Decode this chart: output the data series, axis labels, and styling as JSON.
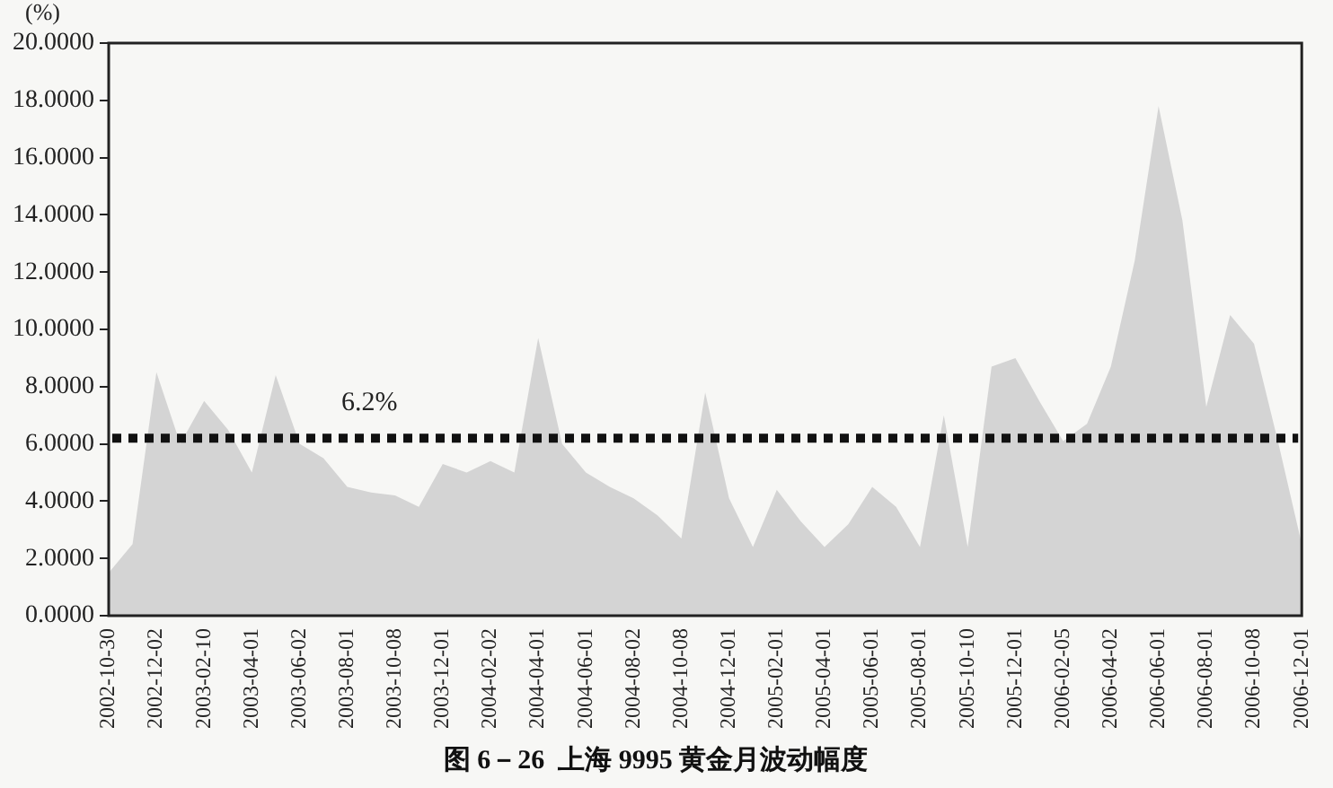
{
  "chart_data": {
    "type": "area",
    "title": "图 6－26  上海 9995 黄金月波动幅度",
    "ylabel": "(%)",
    "categories": [
      "2002-10-30",
      null,
      "2002-12-02",
      null,
      "2003-02-10",
      null,
      "2003-04-01",
      null,
      "2003-06-02",
      null,
      "2003-08-01",
      null,
      "2003-10-08",
      null,
      "2003-12-01",
      null,
      "2004-02-02",
      null,
      "2004-04-01",
      null,
      "2004-06-01",
      null,
      "2004-08-02",
      null,
      "2004-10-08",
      null,
      "2004-12-01",
      null,
      "2005-02-01",
      null,
      "2005-04-01",
      null,
      "2005-06-01",
      null,
      "2005-08-01",
      null,
      "2005-10-10",
      null,
      "2005-12-01",
      null,
      "2006-02-05",
      null,
      "2006-04-02",
      null,
      "2006-06-01",
      null,
      "2006-08-01",
      null,
      "2006-10-08",
      null,
      "2006-12-01"
    ],
    "series": [
      {
        "color": "#d4d4d4",
        "values": [
          1.5,
          2.5,
          8.5,
          6,
          7.5,
          6.5,
          5,
          8.4,
          6,
          5.5,
          4.5,
          4.3,
          4.2,
          3.8,
          5.3,
          5,
          5.4,
          5,
          9.7,
          6,
          5,
          4.5,
          4.1,
          3.5,
          2.7,
          7.8,
          4.1,
          2.4,
          4.4,
          3.3,
          2.4,
          3.2,
          4.5,
          3.8,
          2.4,
          7,
          2.4,
          8.7,
          9,
          7.5,
          6.1,
          6.7,
          8.7,
          12.4,
          17.8,
          13.8,
          7.3,
          10.5,
          9.5,
          6.1,
          2.5
        ]
      }
    ],
    "ylim": [
      0,
      20
    ],
    "yticks": [
      {
        "value": 0,
        "label": "0.0000"
      },
      {
        "value": 2,
        "label": "2.0000"
      },
      {
        "value": 4,
        "label": "4.0000"
      },
      {
        "value": 6,
        "label": "6.0000"
      },
      {
        "value": 8,
        "label": "8.0000"
      },
      {
        "value": 10,
        "label": "10.0000"
      },
      {
        "value": 12,
        "label": "12.0000"
      },
      {
        "value": 14,
        "label": "14.0000"
      },
      {
        "value": 16,
        "label": "16.0000"
      },
      {
        "value": 18,
        "label": "18.0000"
      },
      {
        "value": 20,
        "label": "20.0000"
      }
    ],
    "ref_lines": [
      {
        "axis": "y",
        "value": 6.2,
        "label": "6.2%",
        "color": "#111111",
        "line_style": "dotted"
      }
    ],
    "grid": false,
    "legend": false,
    "marker": "none"
  }
}
